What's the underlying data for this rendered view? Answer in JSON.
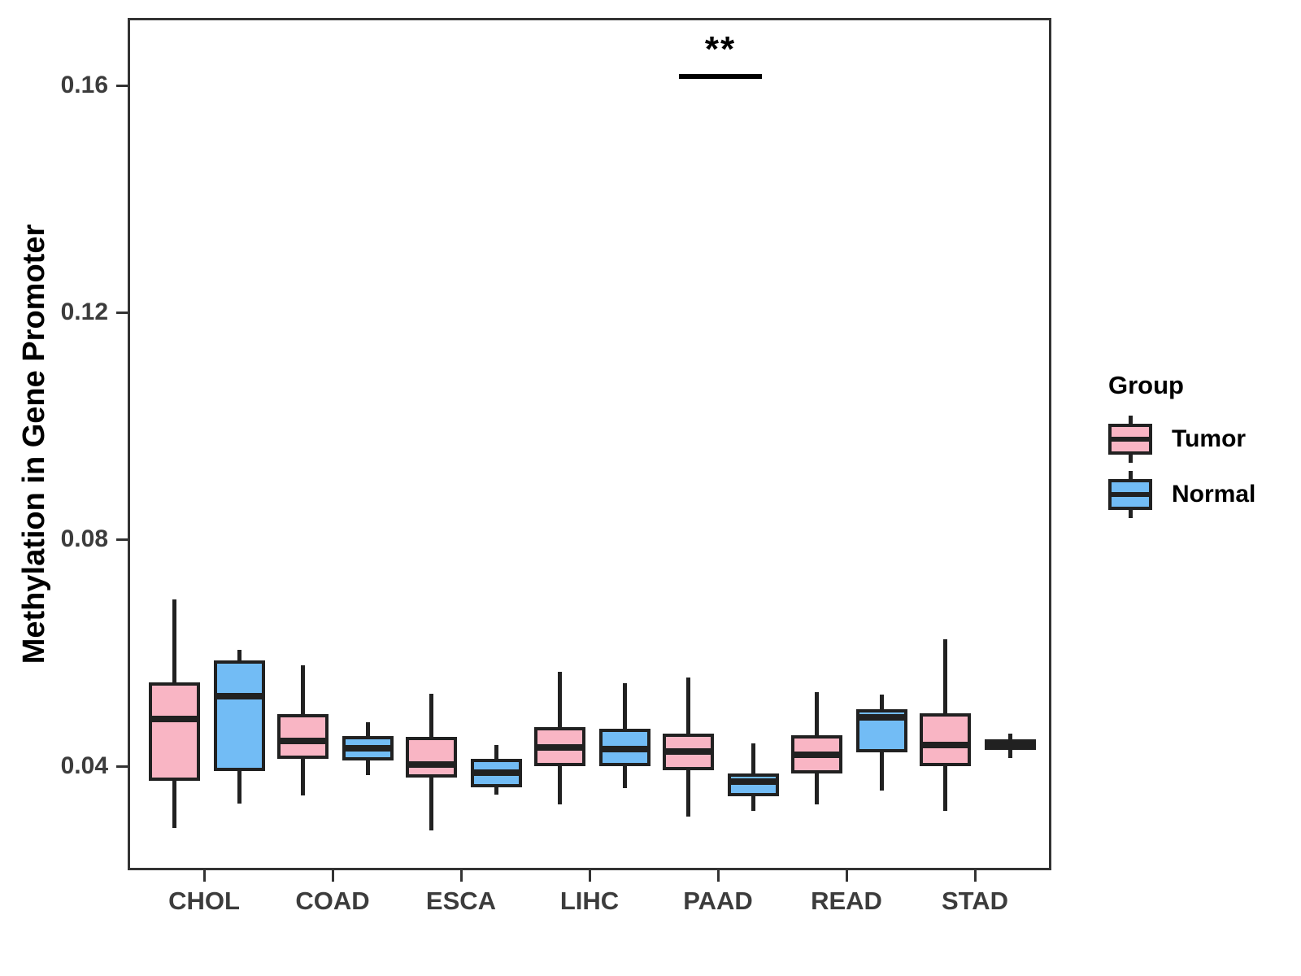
{
  "colors": {
    "tumor_fill": "#F9B5C4",
    "normal_fill": "#72BCF5",
    "box_stroke": "#212121",
    "panel_border": "#333333",
    "axis_text": "#3C3C3C",
    "title_text": "#000000"
  },
  "chart_data": {
    "type": "boxplot",
    "title": "",
    "xlabel": "",
    "ylabel": "Methylation in Gene Promoter",
    "categories": [
      "CHOL",
      "COAD",
      "ESCA",
      "LIHC",
      "PAAD",
      "READ",
      "STAD"
    ],
    "groups": [
      {
        "name": "Tumor",
        "color": "#F9B5C4"
      },
      {
        "name": "Normal",
        "color": "#72BCF5"
      }
    ],
    "yticks": [
      0.04,
      0.08,
      0.12,
      0.16
    ],
    "ytick_labels": [
      "0.04",
      "0.08",
      "0.12",
      "0.16"
    ],
    "ylim": [
      0.022,
      0.172
    ],
    "grid": false,
    "legend_position": "right",
    "boxes": [
      {
        "category": "CHOL",
        "group": "Tumor",
        "whislo": 0.0295,
        "q1": 0.0378,
        "med": 0.0487,
        "q3": 0.0552,
        "whishi": 0.0698
      },
      {
        "category": "CHOL",
        "group": "Normal",
        "whislo": 0.0338,
        "q1": 0.0396,
        "med": 0.0527,
        "q3": 0.059,
        "whishi": 0.0609
      },
      {
        "category": "COAD",
        "group": "Tumor",
        "whislo": 0.0353,
        "q1": 0.0417,
        "med": 0.0449,
        "q3": 0.0496,
        "whishi": 0.0582
      },
      {
        "category": "COAD",
        "group": "Normal",
        "whislo": 0.0389,
        "q1": 0.0414,
        "med": 0.0436,
        "q3": 0.0457,
        "whishi": 0.0482
      },
      {
        "category": "ESCA",
        "group": "Tumor",
        "whislo": 0.0291,
        "q1": 0.0384,
        "med": 0.0407,
        "q3": 0.0456,
        "whishi": 0.0532
      },
      {
        "category": "ESCA",
        "group": "Normal",
        "whislo": 0.0354,
        "q1": 0.0367,
        "med": 0.0393,
        "q3": 0.0417,
        "whishi": 0.0442
      },
      {
        "category": "LIHC",
        "group": "Tumor",
        "whislo": 0.0337,
        "q1": 0.0405,
        "med": 0.0437,
        "q3": 0.0473,
        "whishi": 0.057
      },
      {
        "category": "LIHC",
        "group": "Normal",
        "whislo": 0.0365,
        "q1": 0.0404,
        "med": 0.0435,
        "q3": 0.047,
        "whishi": 0.055
      },
      {
        "category": "PAAD",
        "group": "Tumor",
        "whislo": 0.0315,
        "q1": 0.0397,
        "med": 0.043,
        "q3": 0.0462,
        "whishi": 0.056
      },
      {
        "category": "PAAD",
        "group": "Normal",
        "whislo": 0.0326,
        "q1": 0.0351,
        "med": 0.0377,
        "q3": 0.0391,
        "whishi": 0.0445
      },
      {
        "category": "READ",
        "group": "Tumor",
        "whislo": 0.0337,
        "q1": 0.0391,
        "med": 0.0424,
        "q3": 0.0459,
        "whishi": 0.0535
      },
      {
        "category": "READ",
        "group": "Normal",
        "whislo": 0.0361,
        "q1": 0.0429,
        "med": 0.049,
        "q3": 0.0504,
        "whishi": 0.053
      },
      {
        "category": "STAD",
        "group": "Tumor",
        "whislo": 0.0326,
        "q1": 0.0404,
        "med": 0.0441,
        "q3": 0.0498,
        "whishi": 0.0628
      },
      {
        "category": "STAD",
        "group": "Normal",
        "whislo": 0.0419,
        "q1": 0.0433,
        "med": 0.0442,
        "q3": 0.0451,
        "whishi": 0.0461
      }
    ],
    "significance": [
      {
        "category": "PAAD",
        "label": "**",
        "line_y": 0.162
      }
    ],
    "legend": {
      "title": "Group",
      "entries": [
        "Tumor",
        "Normal"
      ]
    }
  }
}
